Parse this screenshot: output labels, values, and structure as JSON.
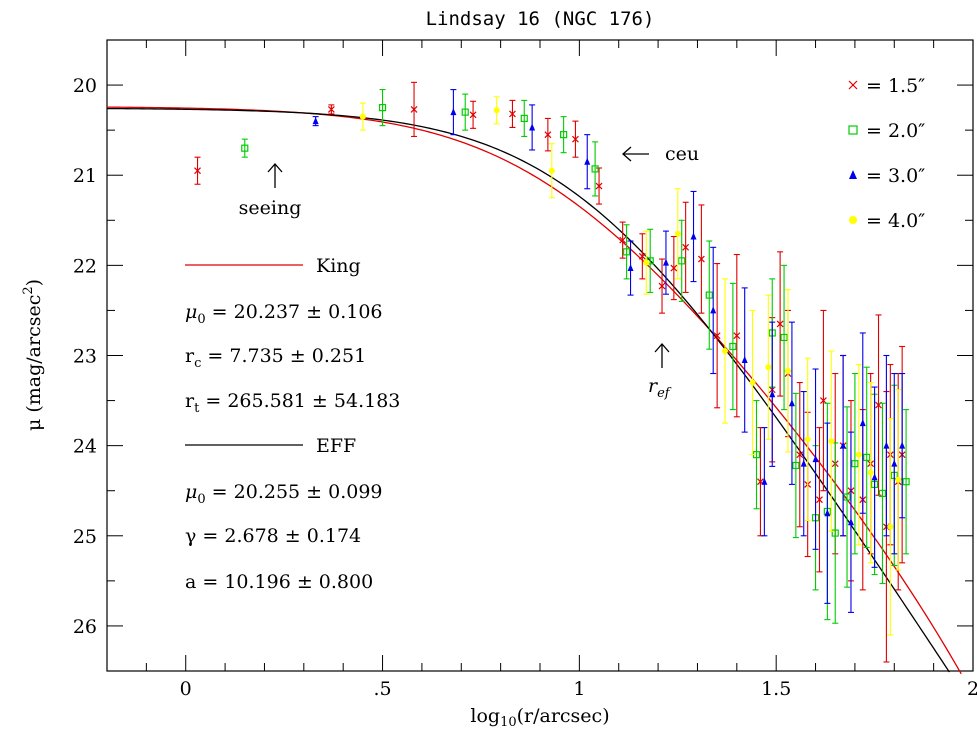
{
  "chart_data": {
    "type": "scatter",
    "title": "Lindsay 16 (NGC 176)",
    "xlabel": "log",
    "xlabel_sub": "10",
    "xlabel_rest": "(r/arcsec)",
    "ylabel": "μ (mag/arcsec",
    "ylabel_sup": "2",
    "ylabel_close": ")",
    "xlim": [
      -0.2,
      2.0
    ],
    "ylim": [
      26.5,
      19.5
    ],
    "y_inverted": true,
    "xticks": [
      {
        "v": 0,
        "label": "0"
      },
      {
        "v": 0.5,
        "label": ".5"
      },
      {
        "v": 1.0,
        "label": "1"
      },
      {
        "v": 1.5,
        "label": "1.5"
      },
      {
        "v": 2.0,
        "label": "2"
      }
    ],
    "yticks": [
      {
        "v": 20,
        "label": "20"
      },
      {
        "v": 21,
        "label": "21"
      },
      {
        "v": 22,
        "label": "22"
      },
      {
        "v": 23,
        "label": "23"
      },
      {
        "v": 24,
        "label": "24"
      },
      {
        "v": 25,
        "label": "25"
      },
      {
        "v": 26,
        "label": "26"
      }
    ],
    "legend": {
      "placement": "top-right",
      "entries": [
        {
          "series": "s15",
          "label": "= 1.5″"
        },
        {
          "series": "s20",
          "label": "= 2.0″"
        },
        {
          "series": "s30",
          "label": "= 3.0″"
        },
        {
          "series": "s40",
          "label": "= 4.0″"
        }
      ]
    },
    "series": [
      {
        "id": "s15",
        "name": "1.5″",
        "marker": "cross",
        "color": "#e00000",
        "points": [
          [
            0.03,
            20.95,
            0.15
          ],
          [
            0.37,
            20.27,
            0.05
          ],
          [
            0.58,
            20.27,
            0.3
          ],
          [
            0.73,
            20.33,
            0.15
          ],
          [
            0.83,
            20.32,
            0.15
          ],
          [
            0.92,
            20.55,
            0.18
          ],
          [
            0.99,
            20.6,
            0.2
          ],
          [
            1.05,
            21.12,
            0.2
          ],
          [
            1.11,
            21.72,
            0.2
          ],
          [
            1.16,
            21.9,
            0.25
          ],
          [
            1.21,
            22.23,
            0.3
          ],
          [
            1.24,
            22.03,
            0.35
          ],
          [
            1.27,
            21.8,
            0.5
          ],
          [
            1.31,
            21.93,
            0.6
          ],
          [
            1.35,
            22.78,
            0.8
          ],
          [
            1.4,
            22.78,
            0.9
          ],
          [
            1.46,
            24.4,
            0.6
          ],
          [
            1.49,
            23.38,
            0.8
          ],
          [
            1.51,
            22.65,
            0.8
          ],
          [
            1.53,
            23.2,
            0.7
          ],
          [
            1.56,
            24.1,
            0.8
          ],
          [
            1.58,
            24.43,
            0.8
          ],
          [
            1.61,
            24.6,
            0.8
          ],
          [
            1.62,
            23.5,
            1.0
          ],
          [
            1.65,
            24.2,
            1.0
          ],
          [
            1.67,
            24.0,
            1.0
          ],
          [
            1.69,
            24.5,
            1.0
          ],
          [
            1.72,
            24.6,
            1.0
          ],
          [
            1.74,
            24.2,
            1.0
          ],
          [
            1.76,
            23.55,
            1.0
          ],
          [
            1.78,
            24.9,
            1.5
          ],
          [
            1.79,
            24.1,
            1.0
          ],
          [
            1.81,
            24.4,
            1.2
          ],
          [
            1.82,
            24.1,
            1.2
          ]
        ]
      },
      {
        "id": "s20",
        "name": "2.0″",
        "marker": "square",
        "color": "#00cc00",
        "points": [
          [
            0.15,
            20.7,
            0.1
          ],
          [
            0.5,
            20.25,
            0.2
          ],
          [
            0.71,
            20.3,
            0.2
          ],
          [
            0.86,
            20.37,
            0.2
          ],
          [
            0.96,
            20.55,
            0.2
          ],
          [
            1.04,
            20.93,
            0.3
          ],
          [
            1.12,
            21.85,
            0.3
          ],
          [
            1.18,
            21.95,
            0.35
          ],
          [
            1.26,
            21.95,
            0.45
          ],
          [
            1.33,
            22.33,
            0.6
          ],
          [
            1.39,
            22.9,
            0.7
          ],
          [
            1.45,
            24.1,
            0.6
          ],
          [
            1.49,
            22.75,
            0.6
          ],
          [
            1.52,
            22.8,
            0.8
          ],
          [
            1.55,
            24.22,
            0.8
          ],
          [
            1.6,
            24.8,
            0.8
          ],
          [
            1.63,
            24.73,
            1.2
          ],
          [
            1.65,
            24.97,
            1.0
          ],
          [
            1.68,
            24.57,
            1.0
          ],
          [
            1.7,
            24.2,
            1.0
          ],
          [
            1.73,
            24.13,
            1.0
          ],
          [
            1.75,
            24.43,
            1.0
          ],
          [
            1.77,
            24.53,
            1.0
          ],
          [
            1.8,
            24.33,
            1.0
          ],
          [
            1.83,
            24.4,
            0.8
          ]
        ]
      },
      {
        "id": "s30",
        "name": "3.0″",
        "marker": "triangle",
        "color": "#0000ee",
        "points": [
          [
            0.33,
            20.4,
            0.05
          ],
          [
            0.68,
            20.3,
            0.25
          ],
          [
            0.88,
            20.47,
            0.25
          ],
          [
            1.02,
            20.85,
            0.3
          ],
          [
            1.13,
            22.03,
            0.3
          ],
          [
            1.22,
            21.97,
            0.35
          ],
          [
            1.29,
            21.68,
            0.5
          ],
          [
            1.34,
            22.5,
            0.7
          ],
          [
            1.42,
            23.05,
            0.8
          ],
          [
            1.47,
            24.4,
            0.6
          ],
          [
            1.49,
            23.43,
            0.8
          ],
          [
            1.54,
            23.53,
            0.9
          ],
          [
            1.57,
            24.2,
            0.8
          ],
          [
            1.6,
            24.15,
            1.0
          ],
          [
            1.63,
            24.75,
            1.0
          ],
          [
            1.67,
            24.0,
            1.0
          ],
          [
            1.69,
            24.85,
            1.0
          ],
          [
            1.72,
            23.75,
            1.0
          ],
          [
            1.75,
            24.35,
            1.0
          ],
          [
            1.78,
            24.0,
            1.0
          ],
          [
            1.8,
            24.2,
            1.0
          ],
          [
            1.82,
            24.0,
            0.8
          ]
        ]
      },
      {
        "id": "s40",
        "name": "4.0″",
        "marker": "circle",
        "color": "#ffff00",
        "points": [
          [
            0.45,
            20.35,
            0.15
          ],
          [
            0.79,
            20.28,
            0.15
          ],
          [
            0.93,
            20.95,
            0.3
          ],
          [
            1.17,
            21.97,
            0.35
          ],
          [
            1.25,
            21.65,
            0.5
          ],
          [
            1.37,
            22.95,
            0.8
          ],
          [
            1.44,
            23.3,
            0.8
          ],
          [
            1.48,
            23.13,
            0.8
          ],
          [
            1.53,
            23.17,
            0.9
          ],
          [
            1.58,
            23.93,
            0.9
          ],
          [
            1.64,
            23.95,
            1.0
          ],
          [
            1.71,
            24.1,
            1.0
          ],
          [
            1.74,
            24.3,
            1.0
          ],
          [
            1.79,
            24.9,
            1.2
          ],
          [
            1.81,
            24.38,
            1.0
          ]
        ]
      }
    ],
    "models": [
      {
        "name": "King",
        "type": "king",
        "color": "#e00000",
        "mu0": 20.237,
        "rc": 7.735,
        "rt": 265.581
      },
      {
        "name": "EFF",
        "type": "eff",
        "color": "#000000",
        "mu0": 20.255,
        "gamma": 2.678,
        "a": 10.196
      }
    ],
    "annotations": {
      "seeing": "seeing",
      "ceu": "ceu",
      "ref_main": "r",
      "ref_sub": "ef"
    },
    "fit_text": {
      "king_label": "King",
      "king_mu0_sym": "μ",
      "king_mu0_sub": "0",
      "king_mu0_rest": " =  20.237  ±  0.106",
      "king_rc_sym": "r",
      "king_rc_sub": "c",
      "king_rc_rest": " =  7.735  ±  0.251",
      "king_rt_sym": "r",
      "king_rt_sub": "t",
      "king_rt_rest": " =  265.581  ±  54.183",
      "eff_label": "EFF",
      "eff_mu0_sym": "μ",
      "eff_mu0_sub": "0",
      "eff_mu0_rest": " =  20.255  ±  0.099",
      "eff_gamma": "γ  =  2.678  ±  0.174",
      "eff_a": "a  =  10.196  ±  0.800"
    }
  }
}
